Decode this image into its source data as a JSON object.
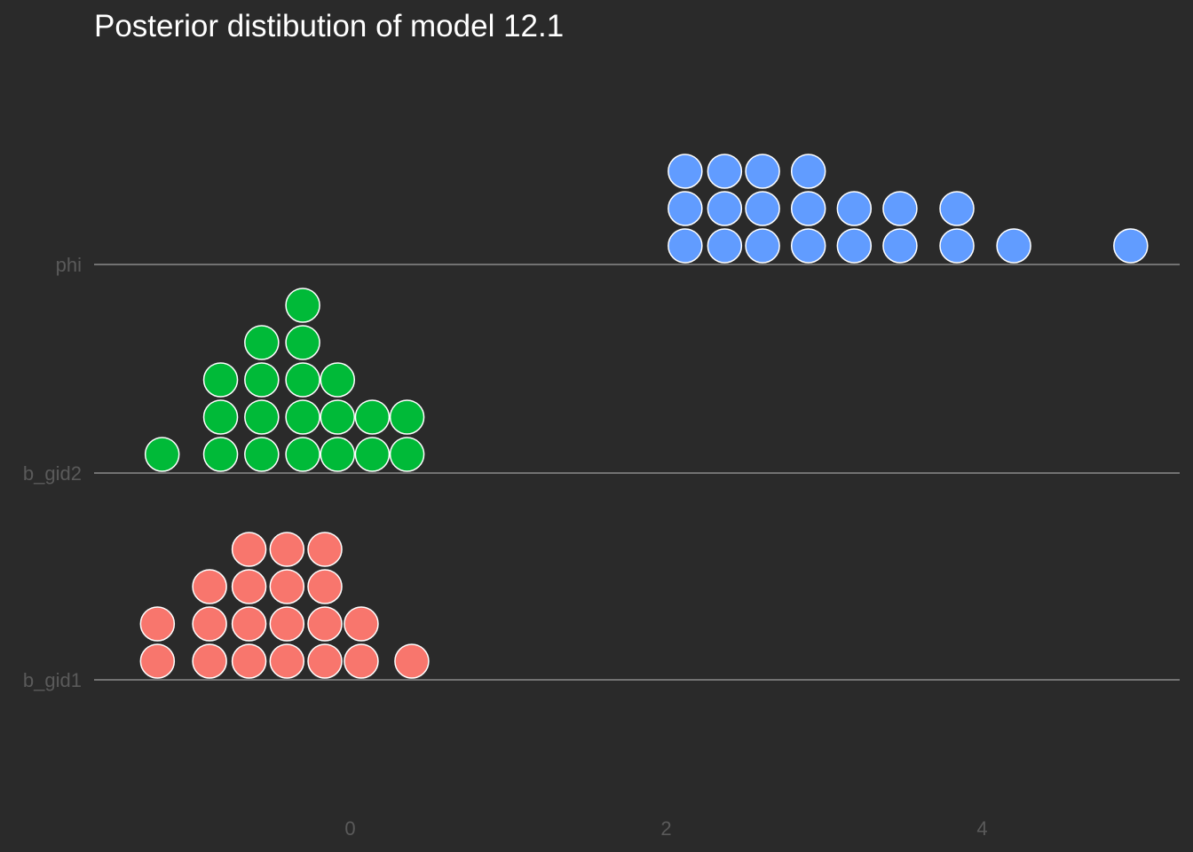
{
  "chart_data": {
    "type": "scatter",
    "subtype": "quantile-dotplot",
    "title": "Posterior distibution of model 12.1",
    "xlabel": "",
    "ylabel": "",
    "xlim": [
      -1.65,
      5.3
    ],
    "x_ticks": [
      0,
      2,
      4
    ],
    "grid": false,
    "legend": "none",
    "categories": [
      "b_gid1",
      "b_gid2",
      "phi"
    ],
    "series": [
      {
        "name": "b_gid1",
        "color": "#f8766d",
        "dots": [
          {
            "x": -1.22,
            "count": 2
          },
          {
            "x": -0.89,
            "count": 3
          },
          {
            "x": -0.64,
            "count": 4
          },
          {
            "x": -0.4,
            "count": 4
          },
          {
            "x": -0.16,
            "count": 4
          },
          {
            "x": 0.07,
            "count": 2
          },
          {
            "x": 0.39,
            "count": 1
          }
        ]
      },
      {
        "name": "b_gid2",
        "color": "#00ba38",
        "dots": [
          {
            "x": -1.19,
            "count": 1
          },
          {
            "x": -0.82,
            "count": 3
          },
          {
            "x": -0.56,
            "count": 4
          },
          {
            "x": -0.3,
            "count": 5
          },
          {
            "x": -0.08,
            "count": 3
          },
          {
            "x": 0.14,
            "count": 2
          },
          {
            "x": 0.36,
            "count": 2
          }
        ]
      },
      {
        "name": "phi",
        "color": "#619cff",
        "dots": [
          {
            "x": 2.12,
            "count": 3
          },
          {
            "x": 2.37,
            "count": 3
          },
          {
            "x": 2.61,
            "count": 3
          },
          {
            "x": 2.9,
            "count": 3
          },
          {
            "x": 3.19,
            "count": 2
          },
          {
            "x": 3.48,
            "count": 2
          },
          {
            "x": 3.84,
            "count": 2
          },
          {
            "x": 4.2,
            "count": 1
          },
          {
            "x": 4.94,
            "count": 1
          }
        ]
      }
    ]
  }
}
